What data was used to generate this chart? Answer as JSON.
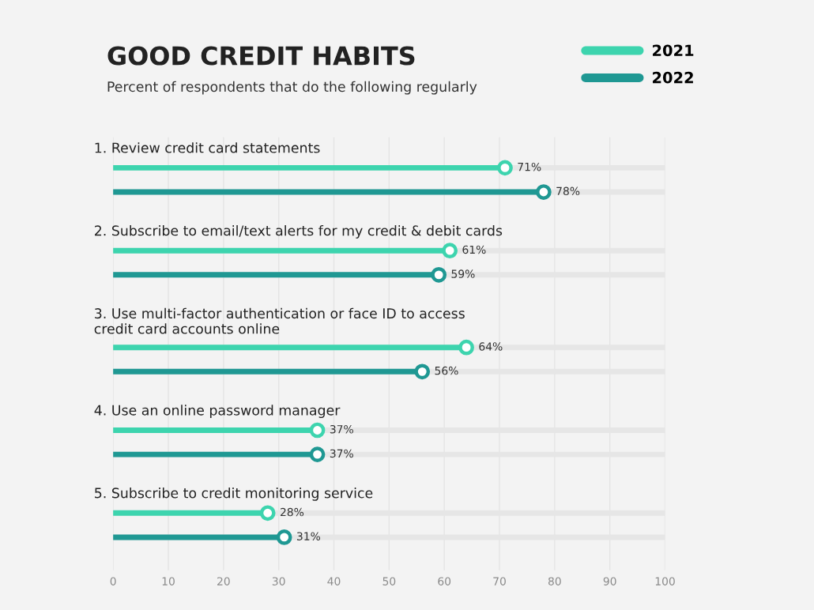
{
  "chart_data": {
    "type": "lollipop",
    "orientation": "horizontal",
    "title": "GOOD CREDIT HABITS",
    "subtitle": "Percent of respondents that do the following regularly",
    "categories": [
      "1. Review credit card statements",
      "2. Subscribe to email/text alerts for my credit & debit cards",
      "3. Use multi-factor authentication or face ID to access\ncredit card accounts online",
      "4. Use an online password manager",
      "5. Subscribe to credit monitoring service"
    ],
    "series": [
      {
        "name": "2021",
        "color": "#3dd4ae",
        "values": [
          71,
          61,
          64,
          37,
          28
        ],
        "value_labels": [
          "71%",
          "61%",
          "64%",
          "37%",
          "28%"
        ]
      },
      {
        "name": "2022",
        "color": "#1f9893",
        "values": [
          78,
          59,
          56,
          37,
          31
        ],
        "value_labels": [
          "78%",
          "59%",
          "56%",
          "37%",
          "31%"
        ]
      }
    ],
    "xlim": [
      0,
      100
    ],
    "xticks": [
      0,
      10,
      20,
      30,
      40,
      50,
      60,
      70,
      80,
      90,
      100
    ],
    "grid": "x",
    "legend": "top right",
    "marker": "circle"
  }
}
